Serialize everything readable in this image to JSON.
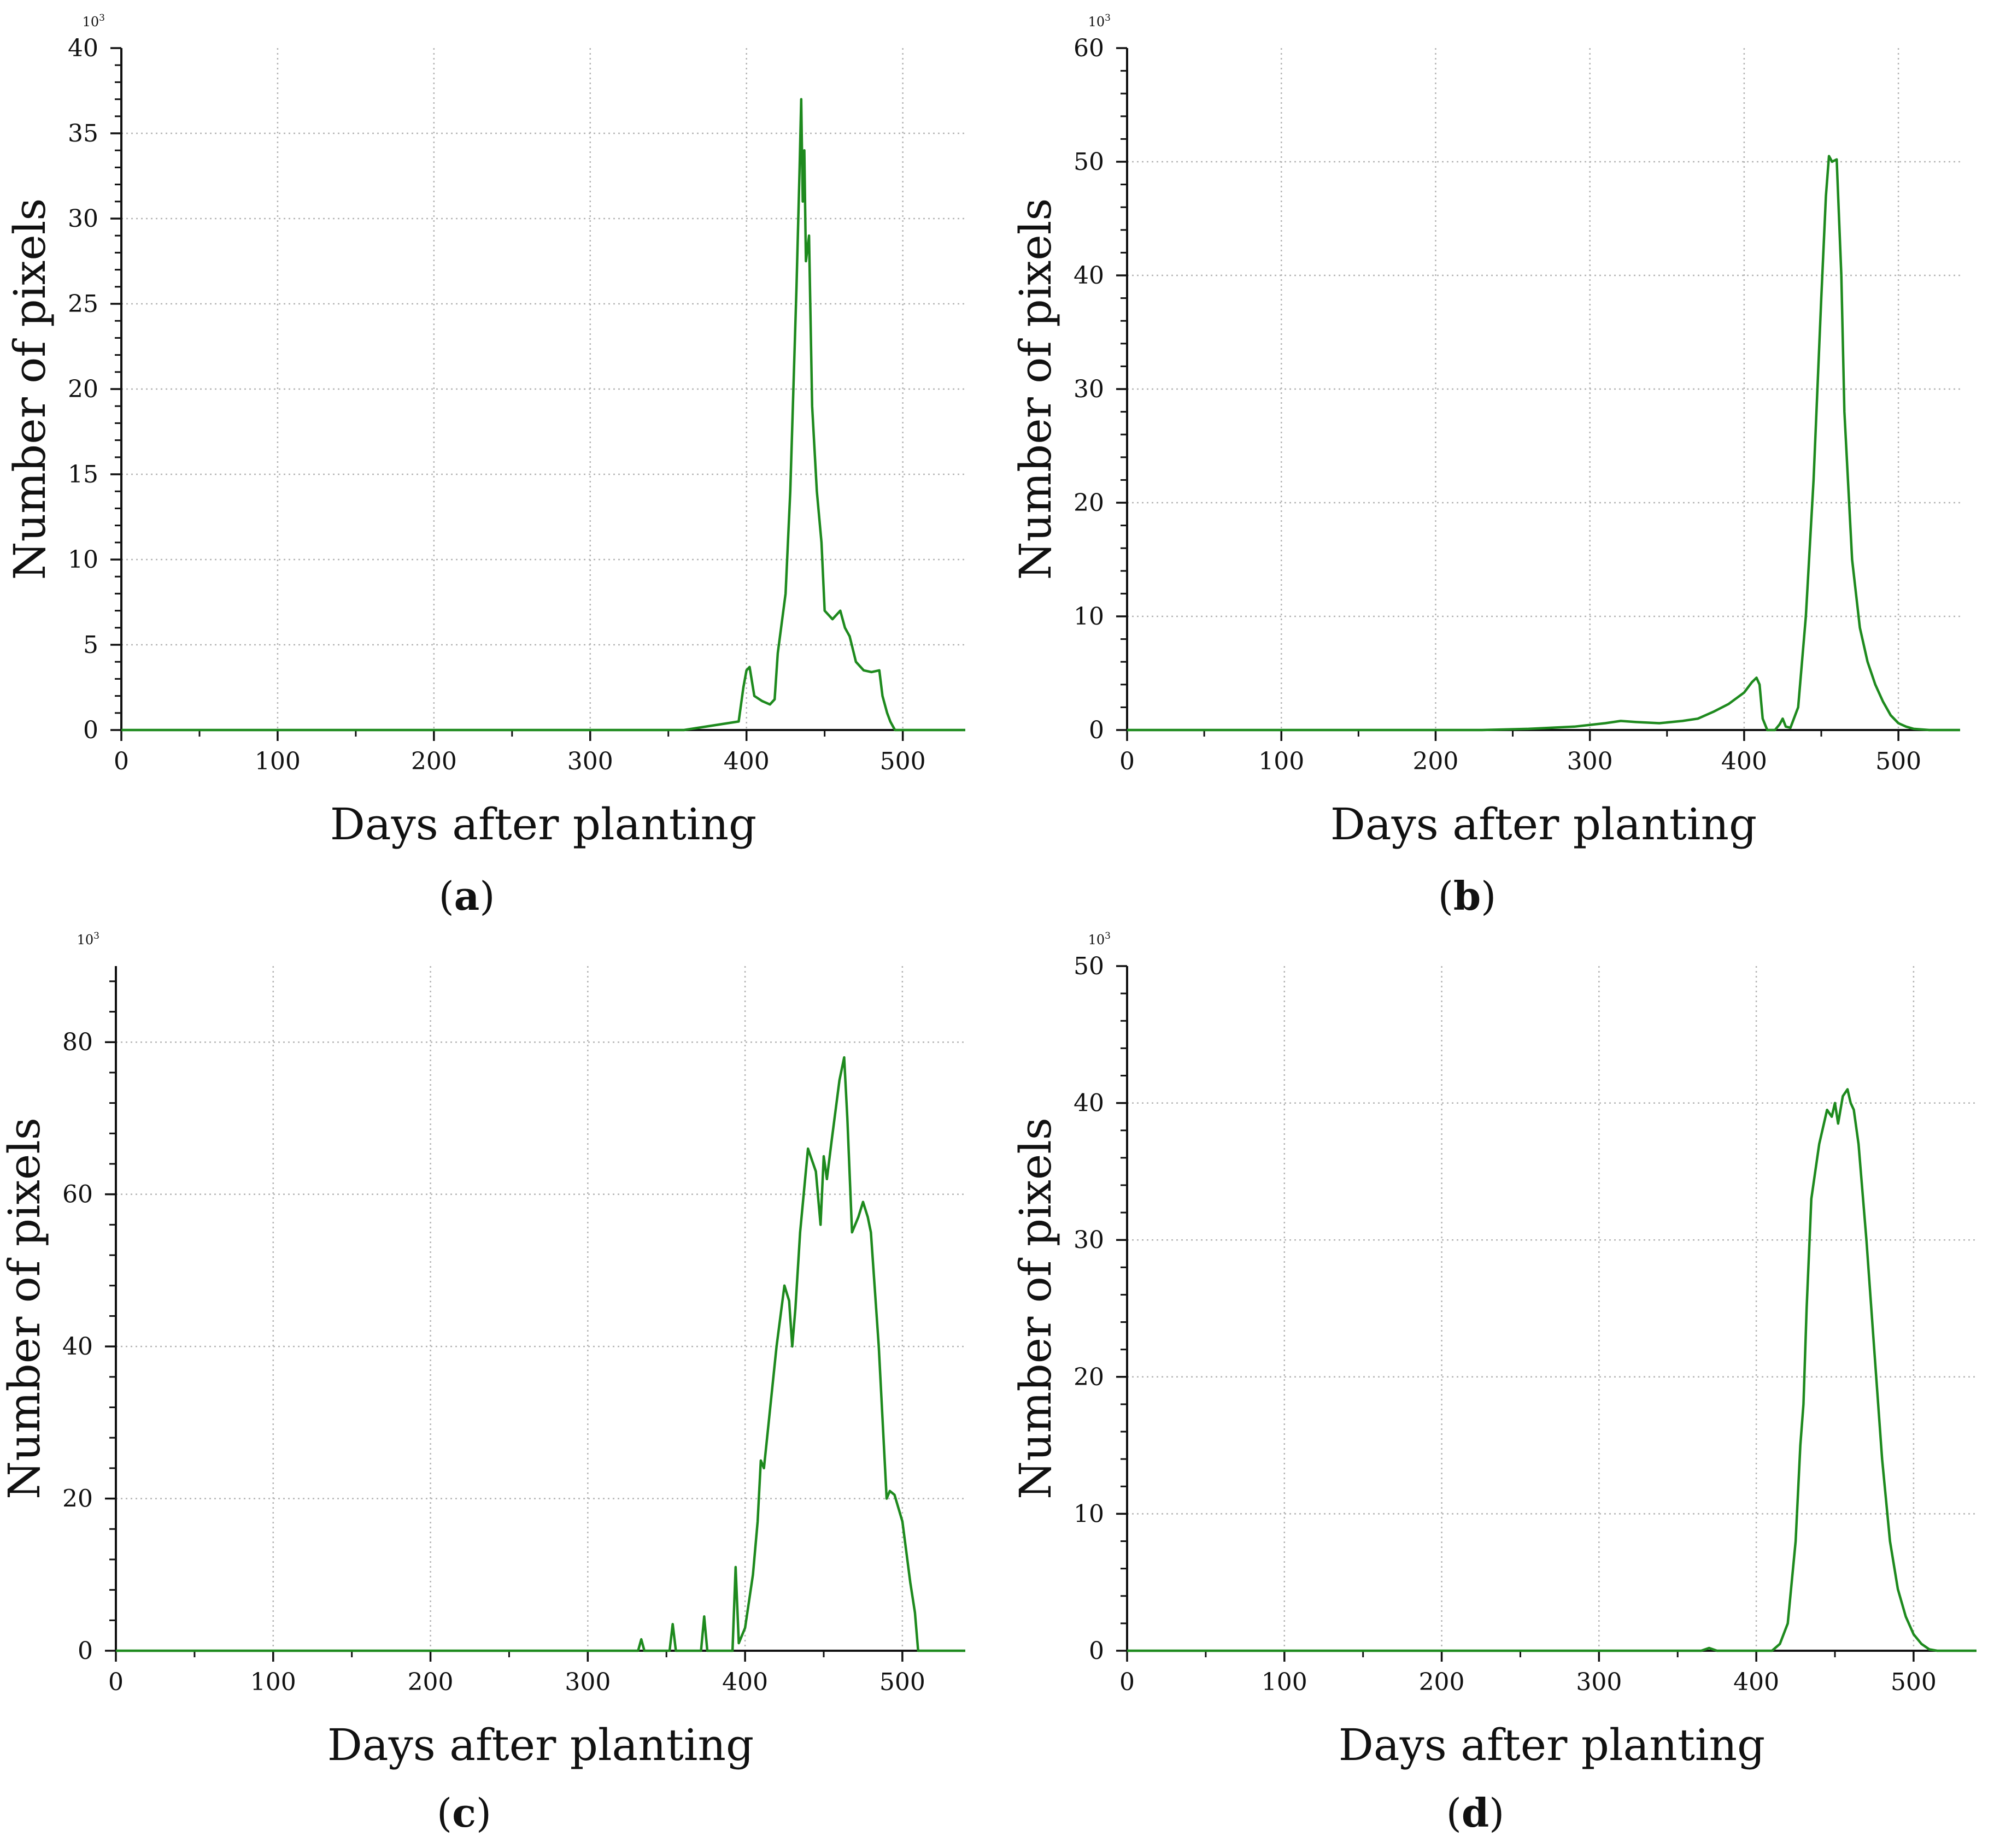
{
  "colors": {
    "series": "#1e8a1e",
    "grid": "#b4b4b4",
    "axis": "#111111"
  },
  "chart_data": [
    {
      "panel_label": "a",
      "type": "line",
      "xlabel": "Days after planting",
      "ylabel": "Number of pixels",
      "y_multiplier_base": "10",
      "y_multiplier_exp": "3",
      "xlim": [
        0,
        540
      ],
      "ylim": [
        0,
        40
      ],
      "xticks": [
        0,
        100,
        200,
        300,
        400,
        500
      ],
      "yticks": [
        0,
        5,
        10,
        15,
        20,
        25,
        30,
        35,
        40
      ],
      "series": [
        {
          "name": "pixels",
          "x": [
            0,
            360,
            395,
            398,
            400,
            402,
            405,
            410,
            415,
            418,
            420,
            425,
            428,
            430,
            432,
            434,
            435,
            436,
            437,
            438,
            440,
            442,
            445,
            448,
            450,
            455,
            460,
            463,
            466,
            470,
            475,
            480,
            485,
            487,
            490,
            492,
            495,
            540
          ],
          "y": [
            0,
            0,
            0.5,
            2.5,
            3.5,
            3.7,
            2.0,
            1.7,
            1.5,
            1.8,
            4.5,
            8.0,
            14.0,
            20.0,
            26.0,
            33.0,
            37.0,
            31.0,
            34.0,
            27.5,
            29.0,
            19.0,
            14.0,
            11.0,
            7.0,
            6.5,
            7.0,
            6.0,
            5.5,
            4.0,
            3.5,
            3.4,
            3.5,
            2.0,
            1.0,
            0.5,
            0,
            0
          ]
        }
      ]
    },
    {
      "panel_label": "b",
      "type": "line",
      "xlabel": "Days after planting",
      "ylabel": "Number of pixels",
      "y_multiplier_base": "10",
      "y_multiplier_exp": "3",
      "xlim": [
        0,
        540
      ],
      "ylim": [
        0,
        60
      ],
      "xticks": [
        0,
        100,
        200,
        300,
        400,
        500
      ],
      "yticks": [
        0,
        10,
        20,
        30,
        40,
        50,
        60
      ],
      "series": [
        {
          "name": "pixels",
          "x": [
            0,
            230,
            260,
            290,
            310,
            320,
            330,
            345,
            360,
            370,
            380,
            390,
            400,
            405,
            408,
            410,
            412,
            415,
            420,
            423,
            425,
            427,
            430,
            435,
            440,
            445,
            450,
            453,
            455,
            457,
            460,
            463,
            465,
            470,
            475,
            480,
            485,
            490,
            495,
            500,
            505,
            510,
            520,
            540
          ],
          "y": [
            0,
            0,
            0.1,
            0.3,
            0.6,
            0.8,
            0.7,
            0.6,
            0.8,
            1.0,
            1.6,
            2.3,
            3.3,
            4.2,
            4.6,
            4.0,
            1.0,
            0,
            0,
            0.5,
            1.0,
            0.3,
            0.2,
            2.0,
            10.0,
            22.0,
            38.0,
            47.0,
            50.5,
            50.0,
            50.2,
            40.0,
            28.0,
            15.0,
            9.0,
            6.0,
            4.0,
            2.5,
            1.3,
            0.6,
            0.3,
            0.1,
            0,
            0
          ]
        }
      ]
    },
    {
      "panel_label": "c",
      "type": "line",
      "xlabel": "Days after planting",
      "ylabel": "Number of pixels",
      "y_multiplier_base": "10",
      "y_multiplier_exp": "3",
      "xlim": [
        0,
        540
      ],
      "ylim": [
        0,
        90
      ],
      "xticks": [
        0,
        100,
        200,
        300,
        400,
        500
      ],
      "yticks": [
        0,
        20,
        40,
        60,
        80
      ],
      "series": [
        {
          "name": "pixels",
          "x": [
            0,
            332,
            334,
            336,
            352,
            354,
            356,
            372,
            374,
            376,
            392,
            394,
            396,
            400,
            405,
            408,
            410,
            412,
            415,
            420,
            425,
            428,
            430,
            432,
            435,
            440,
            445,
            448,
            450,
            452,
            455,
            460,
            463,
            465,
            468,
            472,
            475,
            478,
            480,
            485,
            490,
            492,
            495,
            500,
            505,
            508,
            510,
            540
          ],
          "y": [
            0,
            0,
            1.5,
            0,
            0,
            3.5,
            0,
            0,
            4.5,
            0,
            0,
            11.0,
            1.0,
            3.0,
            10.0,
            17.0,
            25.0,
            24.0,
            30.0,
            40.0,
            48.0,
            46.0,
            40.0,
            45.0,
            55.0,
            66.0,
            63.0,
            56.0,
            65.0,
            62.0,
            67.0,
            75.0,
            78.0,
            70.0,
            55.0,
            57.0,
            59.0,
            57.0,
            55.0,
            40.0,
            20.0,
            21.0,
            20.5,
            17.0,
            9.0,
            5.0,
            0,
            0
          ]
        }
      ]
    },
    {
      "panel_label": "d",
      "type": "line",
      "xlabel": "Days after planting",
      "ylabel": "Number of pixels",
      "y_multiplier_base": "10",
      "y_multiplier_exp": "3",
      "xlim": [
        0,
        540
      ],
      "ylim": [
        0,
        50
      ],
      "xticks": [
        0,
        100,
        200,
        300,
        400,
        500
      ],
      "yticks": [
        0,
        10,
        20,
        30,
        40,
        50
      ],
      "series": [
        {
          "name": "pixels",
          "x": [
            0,
            365,
            370,
            375,
            410,
            415,
            420,
            425,
            428,
            430,
            432,
            435,
            440,
            445,
            448,
            450,
            452,
            455,
            458,
            460,
            462,
            465,
            470,
            475,
            480,
            485,
            490,
            495,
            500,
            505,
            510,
            515,
            520,
            540
          ],
          "y": [
            0,
            0,
            0.2,
            0,
            0,
            0.5,
            2.0,
            8.0,
            15.0,
            18.0,
            25.0,
            33.0,
            37.0,
            39.5,
            39.0,
            40.0,
            38.5,
            40.5,
            41.0,
            40.0,
            39.5,
            37.0,
            30.0,
            22.0,
            14.0,
            8.0,
            4.5,
            2.5,
            1.2,
            0.5,
            0.1,
            0,
            0,
            0
          ]
        }
      ]
    }
  ]
}
